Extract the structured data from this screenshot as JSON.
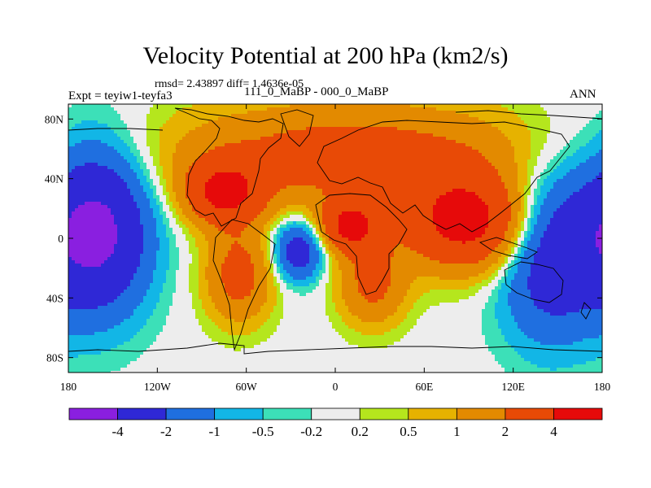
{
  "chart_data": {
    "type": "heatmap",
    "title": "Velocity Potential at 200 hPa (km2/s)",
    "stats": "rmsd= 2.43897 diff= 1.4636e-05",
    "left_label": "Expt = teyiw1-teyfa3",
    "center_label": "111_0_MaBP - 000_0_MaBP",
    "right_label": "ANN",
    "projection": "cylindrical equidistant",
    "x": {
      "range": [
        -180,
        180
      ],
      "ticks": [
        {
          "value": -180,
          "label": "180"
        },
        {
          "value": -120,
          "label": "120W"
        },
        {
          "value": -60,
          "label": "60W"
        },
        {
          "value": 0,
          "label": "0"
        },
        {
          "value": 60,
          "label": "60E"
        },
        {
          "value": 120,
          "label": "120E"
        },
        {
          "value": 180,
          "label": "180"
        }
      ]
    },
    "y": {
      "range": [
        -90,
        90
      ],
      "ticks": [
        {
          "value": 80,
          "label": "80N"
        },
        {
          "value": 40,
          "label": "40N"
        },
        {
          "value": 0,
          "label": "0"
        },
        {
          "value": -40,
          "label": "40S"
        },
        {
          "value": -80,
          "label": "80S"
        }
      ]
    },
    "levels": [
      -4,
      -2,
      -1,
      -0.5,
      -0.2,
      0.2,
      0.5,
      1,
      2,
      4
    ],
    "colorbar_labels": [
      "-4",
      "-2",
      "-1",
      "-0.5",
      "-0.2",
      "0.2",
      "0.5",
      "1",
      "2",
      "4"
    ],
    "colors": [
      "#8a1fe0",
      "#2f28d6",
      "#1f6fe0",
      "#12b6e6",
      "#3ce0b8",
      "#ededed",
      "#b5e61d",
      "#e6b200",
      "#e38a00",
      "#e84a06",
      "#e60a0a"
    ],
    "field_description_centers": [
      {
        "lon": -160,
        "lat": 5,
        "value": -4.6,
        "sigma_lon": 24,
        "sigma_lat": 38
      },
      {
        "lon": 145,
        "lat": -10,
        "value": -3.2,
        "sigma_lon": 24,
        "sigma_lat": 40
      },
      {
        "lon": -25,
        "lat": -8,
        "value": -3.0,
        "sigma_lon": 12,
        "sigma_lat": 14
      },
      {
        "lon": 90,
        "lat": 10,
        "value": 4.8,
        "sigma_lon": 30,
        "sigma_lat": 22
      },
      {
        "lon": 10,
        "lat": 8,
        "value": 4.2,
        "sigma_lon": 14,
        "sigma_lat": 12
      },
      {
        "lon": -75,
        "lat": 30,
        "value": 4.0,
        "sigma_lon": 18,
        "sigma_lat": 15
      },
      {
        "lon": 10,
        "lat": 55,
        "value": 2.8,
        "sigma_lon": 85,
        "sigma_lat": 25
      },
      {
        "lon": -65,
        "lat": -25,
        "value": 2.6,
        "sigma_lon": 16,
        "sigma_lat": 22
      },
      {
        "lon": 25,
        "lat": -30,
        "value": 2.4,
        "sigma_lon": 16,
        "sigma_lat": 20
      },
      {
        "lon": 0,
        "lat": -75,
        "value": 0.0,
        "sigma_lon": 90,
        "sigma_lat": 8
      }
    ]
  }
}
